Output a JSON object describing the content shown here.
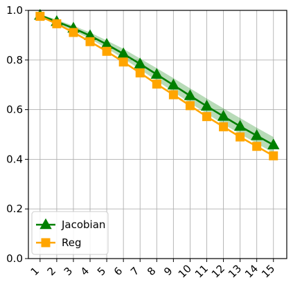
{
  "chart_data": {
    "type": "line",
    "title": "",
    "xlabel": "",
    "ylabel": "",
    "x": [
      1,
      2,
      3,
      4,
      5,
      6,
      7,
      8,
      9,
      10,
      11,
      12,
      13,
      14,
      15
    ],
    "x_tick_labels": [
      "1",
      "2",
      "3",
      "4",
      "5",
      "6",
      "7",
      "8",
      "9",
      "10",
      "11",
      "12",
      "13",
      "14",
      "15"
    ],
    "y_tick_labels": [
      "0.0",
      "0.2",
      "0.4",
      "0.6",
      "0.8",
      "1.0"
    ],
    "y_ticks": [
      0.0,
      0.2,
      0.4,
      0.6,
      0.8,
      1.0
    ],
    "xlim": [
      0.3,
      15.8
    ],
    "ylim": [
      0.0,
      1.0
    ],
    "grid": true,
    "legend_position": "lower-left",
    "series": [
      {
        "name": "Jacobian",
        "color": "#007f00",
        "marker": "triangle",
        "values": [
          0.98,
          0.955,
          0.928,
          0.898,
          0.863,
          0.825,
          0.784,
          0.742,
          0.699,
          0.656,
          0.614,
          0.573,
          0.533,
          0.495,
          0.458
        ],
        "band_low": [
          0.975,
          0.948,
          0.918,
          0.885,
          0.847,
          0.806,
          0.762,
          0.717,
          0.672,
          0.627,
          0.584,
          0.542,
          0.502,
          0.464,
          0.426
        ],
        "band_high": [
          0.985,
          0.962,
          0.938,
          0.911,
          0.879,
          0.845,
          0.806,
          0.767,
          0.727,
          0.686,
          0.645,
          0.605,
          0.566,
          0.527,
          0.49
        ]
      },
      {
        "name": "Reg",
        "color": "#ffa500",
        "marker": "square",
        "values": [
          0.976,
          0.946,
          0.911,
          0.874,
          0.835,
          0.792,
          0.748,
          0.703,
          0.66,
          0.616,
          0.572,
          0.531,
          0.49,
          0.452,
          0.414
        ]
      }
    ]
  }
}
